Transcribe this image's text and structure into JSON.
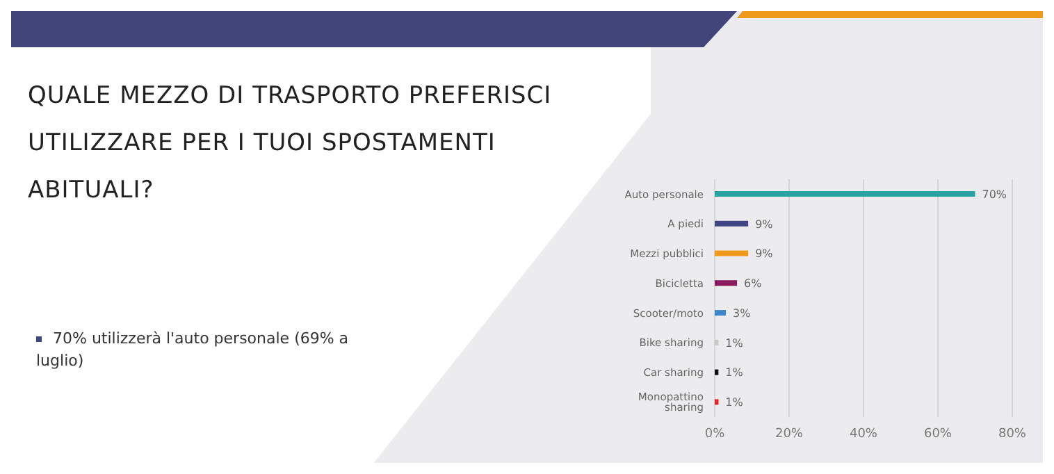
{
  "chart_data": {
    "type": "bar",
    "orientation": "horizontal",
    "title": "QUALE MEZZO DI TRASPORTO PREFERISCI UTILIZZARE PER I TUOI SPOSTAMENTI ABITUALI?",
    "categories": [
      "Auto personale",
      "A piedi",
      "Mezzi pubblici",
      "Bicicletta",
      "Scooter/moto",
      "Bike sharing",
      "Car sharing",
      "Monopattino sharing"
    ],
    "values": [
      70,
      9,
      9,
      6,
      3,
      1,
      1,
      1
    ],
    "colors": [
      "#2aa3a3",
      "#3f4585",
      "#ef9a1a",
      "#8a1a5c",
      "#3a86c8",
      "#c8c8c8",
      "#111111",
      "#d8262a"
    ],
    "value_labels": [
      "70%",
      "9%",
      "9%",
      "6%",
      "3%",
      "1%",
      "1%",
      "1%"
    ],
    "xlim": [
      0,
      80
    ],
    "xticks": [
      {
        "value": 0,
        "label": "0%"
      },
      {
        "value": 20,
        "label": "20%"
      },
      {
        "value": 40,
        "label": "40%"
      },
      {
        "value": 60,
        "label": "60%"
      },
      {
        "value": 80,
        "label": "80%"
      }
    ],
    "grid": "x",
    "annotations": [
      "70% utilizzerà l'auto personale (69% a luglio)"
    ]
  }
}
